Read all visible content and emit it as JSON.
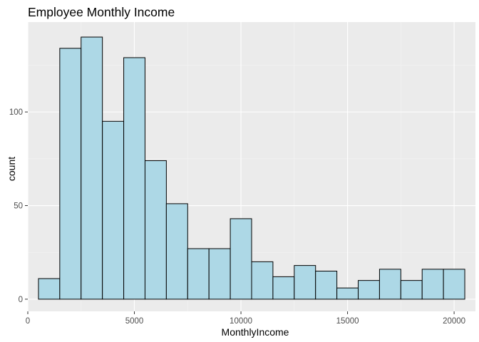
{
  "chart_data": {
    "type": "bar",
    "title": "Employee Monthly Income",
    "xlabel": "MonthlyIncome",
    "ylabel": "count",
    "xlim": [
      0,
      21000
    ],
    "ylim": [
      -6.5,
      148
    ],
    "x_ticks": [
      0,
      5000,
      10000,
      15000,
      20000
    ],
    "x_tick_labels": [
      "0",
      "5000",
      "10000",
      "15000",
      "20000"
    ],
    "x_minor_ticks": [
      2500,
      7500,
      12500,
      17500
    ],
    "y_ticks": [
      0,
      50,
      100
    ],
    "y_tick_labels": [
      "0",
      "50",
      "100"
    ],
    "y_minor_ticks": [
      25,
      75,
      125
    ],
    "grid": true,
    "colors": {
      "panel": "#ebebeb",
      "grid_major": "#ffffff",
      "grid_minor": "#f4f4f4",
      "bar_fill": "#add8e6",
      "bar_stroke": "#000000",
      "tick": "#333333"
    },
    "bins": [
      {
        "x0": 500,
        "x1": 1500,
        "count": 11
      },
      {
        "x0": 1500,
        "x1": 2500,
        "count": 134
      },
      {
        "x0": 2500,
        "x1": 3500,
        "count": 140
      },
      {
        "x0": 3500,
        "x1": 4500,
        "count": 95
      },
      {
        "x0": 4500,
        "x1": 5500,
        "count": 129
      },
      {
        "x0": 5500,
        "x1": 6500,
        "count": 74
      },
      {
        "x0": 6500,
        "x1": 7500,
        "count": 51
      },
      {
        "x0": 7500,
        "x1": 8500,
        "count": 27
      },
      {
        "x0": 8500,
        "x1": 9500,
        "count": 27
      },
      {
        "x0": 9500,
        "x1": 10500,
        "count": 43
      },
      {
        "x0": 10500,
        "x1": 11500,
        "count": 20
      },
      {
        "x0": 11500,
        "x1": 12500,
        "count": 12
      },
      {
        "x0": 12500,
        "x1": 13500,
        "count": 18
      },
      {
        "x0": 13500,
        "x1": 14500,
        "count": 15
      },
      {
        "x0": 14500,
        "x1": 15500,
        "count": 6
      },
      {
        "x0": 15500,
        "x1": 16500,
        "count": 10
      },
      {
        "x0": 16500,
        "x1": 17500,
        "count": 16
      },
      {
        "x0": 17500,
        "x1": 18500,
        "count": 10
      },
      {
        "x0": 18500,
        "x1": 19500,
        "count": 16
      },
      {
        "x0": 19500,
        "x1": 20500,
        "count": 16
      }
    ]
  }
}
